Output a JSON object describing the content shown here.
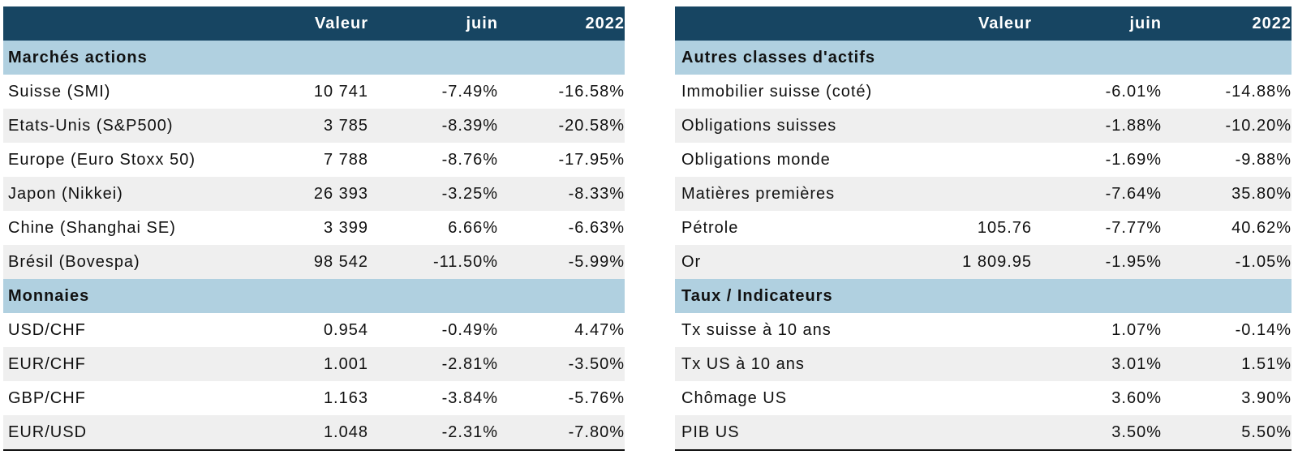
{
  "colors": {
    "header_bg": "#174562",
    "section_bg": "#b0d0e0",
    "alt_row_bg": "#efefef"
  },
  "left": {
    "header": [
      "",
      "Valeur",
      "juin",
      "2022"
    ],
    "sections": [
      {
        "title": "Marchés actions",
        "rows": [
          [
            "Suisse (SMI)",
            "10 741",
            "-7.49%",
            "-16.58%"
          ],
          [
            "Etats-Unis (S&P500)",
            "3 785",
            "-8.39%",
            "-20.58%"
          ],
          [
            "Europe (Euro Stoxx 50)",
            "7 788",
            "-8.76%",
            "-17.95%"
          ],
          [
            "Japon (Nikkei)",
            "26 393",
            "-3.25%",
            "-8.33%"
          ],
          [
            "Chine (Shanghai SE)",
            "3 399",
            "6.66%",
            "-6.63%"
          ],
          [
            "Brésil (Bovespa)",
            "98 542",
            "-11.50%",
            "-5.99%"
          ]
        ]
      },
      {
        "title": "Monnaies",
        "rows": [
          [
            "USD/CHF",
            "0.954",
            "-0.49%",
            "4.47%"
          ],
          [
            "EUR/CHF",
            "1.001",
            "-2.81%",
            "-3.50%"
          ],
          [
            "GBP/CHF",
            "1.163",
            "-3.84%",
            "-5.76%"
          ],
          [
            "EUR/USD",
            "1.048",
            "-2.31%",
            "-7.80%"
          ]
        ]
      }
    ]
  },
  "right": {
    "header": [
      "",
      "Valeur",
      "juin",
      "2022"
    ],
    "sections": [
      {
        "title": "Autres classes d'actifs",
        "rows": [
          [
            "Immobilier suisse (coté)",
            "",
            "-6.01%",
            "-14.88%"
          ],
          [
            "Obligations suisses",
            "",
            "-1.88%",
            "-10.20%"
          ],
          [
            "Obligations monde",
            "",
            "-1.69%",
            "-9.88%"
          ],
          [
            "Matières premières",
            "",
            "-7.64%",
            "35.80%"
          ],
          [
            "Pétrole",
            "105.76",
            "-7.77%",
            "40.62%"
          ],
          [
            "Or",
            "1 809.95",
            "-1.95%",
            "-1.05%"
          ]
        ]
      },
      {
        "title": "Taux / Indicateurs",
        "rows": [
          [
            "Tx suisse à 10 ans",
            "",
            "1.07%",
            "-0.14%"
          ],
          [
            "Tx US à 10 ans",
            "",
            "3.01%",
            "1.51%"
          ],
          [
            "Chômage US",
            "",
            "3.60%",
            "3.90%"
          ],
          [
            "PIB US",
            "",
            "3.50%",
            "5.50%"
          ]
        ]
      }
    ]
  }
}
